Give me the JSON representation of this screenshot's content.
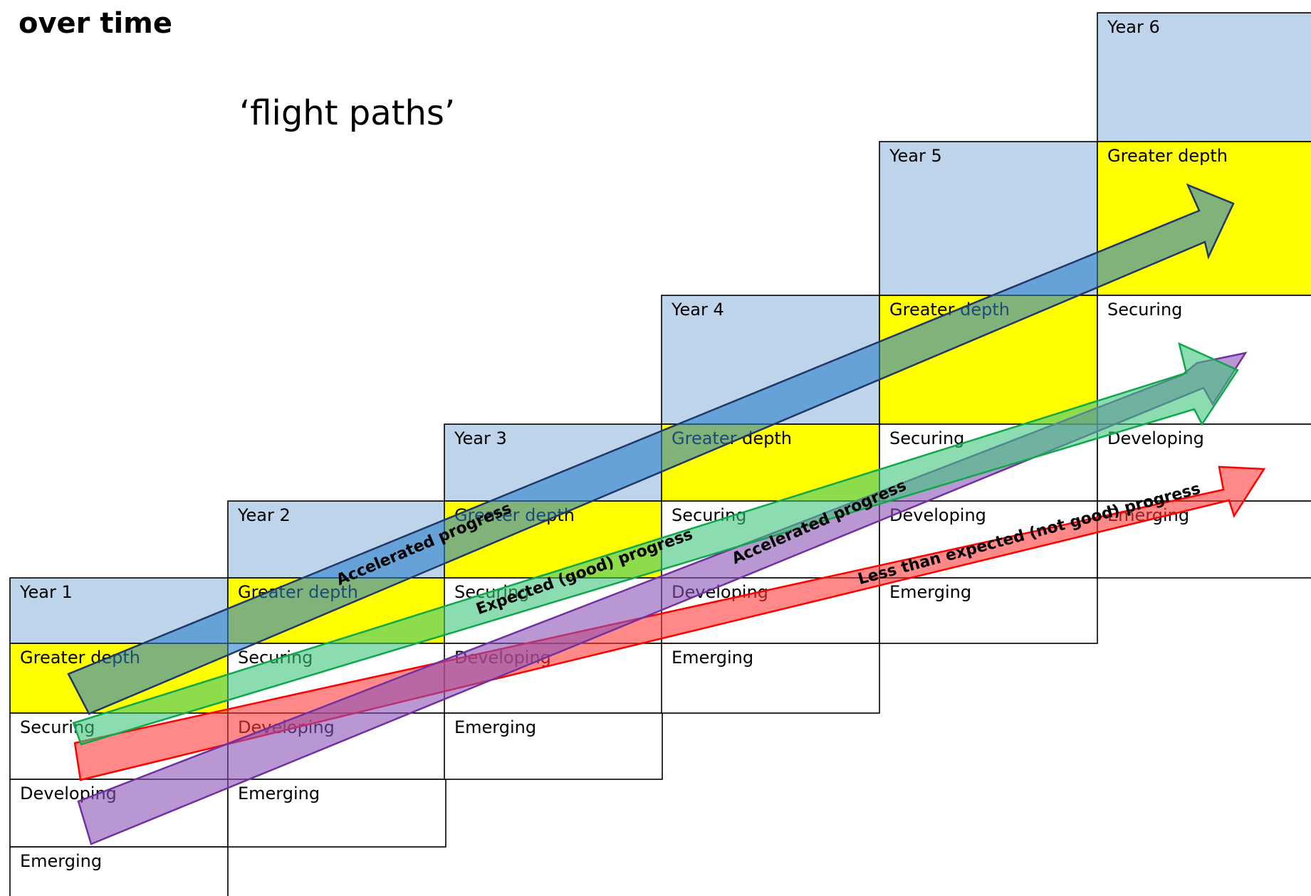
{
  "page": {
    "title": "over time",
    "subtitle": "‘flight paths’"
  },
  "colors": {
    "year_header": "#bed4ea",
    "greater_depth": "#ffff00",
    "plain_cell": "#ffffff",
    "arrow_blue_fill": "#2b7fc9",
    "arrow_blue_stroke": "#1f3864",
    "arrow_green_fill": "#3fc47f",
    "arrow_green_stroke": "#0ea84a",
    "arrow_purple_fill": "#8a52b5",
    "arrow_purple_stroke": "#7030a0",
    "arrow_red_fill": "#ff3b3b",
    "arrow_red_stroke": "#ff0000"
  },
  "years": [
    {
      "name": "Year 1",
      "levels": [
        "Greater depth",
        "Securing",
        "Developing",
        "Emerging"
      ]
    },
    {
      "name": "Year 2",
      "levels": [
        "Greater depth",
        "Securing",
        "Developing",
        "Emerging"
      ]
    },
    {
      "name": "Year 3",
      "levels": [
        "Greater depth",
        "Securing",
        "Developing",
        "Emerging"
      ]
    },
    {
      "name": "Year 4",
      "levels": [
        "Greater depth",
        "Securing",
        "Developing",
        "Emerging"
      ]
    },
    {
      "name": "Year 5",
      "levels": [
        "Greater depth",
        "Securing",
        "Developing",
        "Emerging"
      ]
    },
    {
      "name": "Year 6",
      "levels": [
        "Greater depth",
        "Securing",
        "Developing",
        "Emerging"
      ]
    }
  ],
  "arrows": [
    {
      "id": "blue",
      "label": "Accelerated progress",
      "from": "Year 1 Greater depth",
      "to": "Year 6 Greater depth"
    },
    {
      "id": "green",
      "label": "Expected (good) progress",
      "from": "Year 1 Securing",
      "to": "Year 6 Securing"
    },
    {
      "id": "purple",
      "label": "Accelerated progress",
      "from": "Year 1 Developing",
      "to": "Year 6 Securing"
    },
    {
      "id": "red",
      "label": "Less than expected (not good) progress",
      "from": "Year 1 Securing",
      "to": "Year 6 Developing"
    }
  ]
}
